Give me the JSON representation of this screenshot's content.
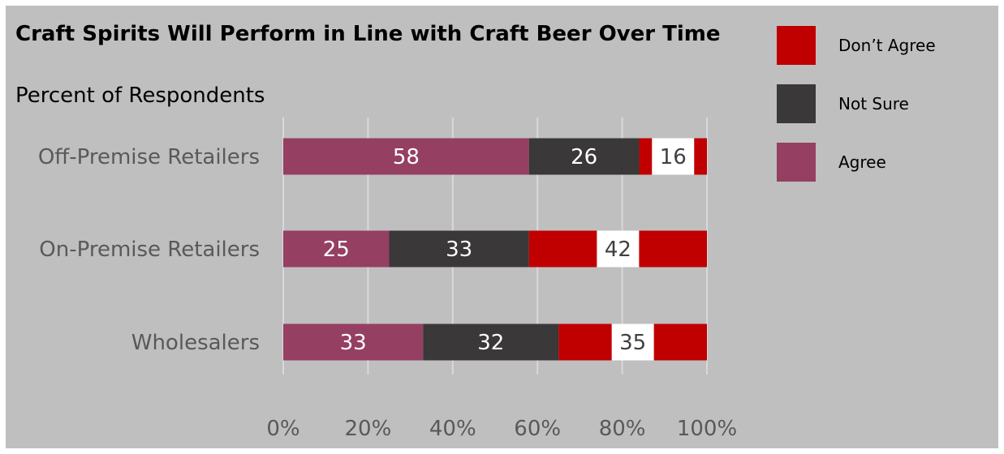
{
  "chart_data": {
    "type": "bar",
    "orientation": "horizontal",
    "stacked": true,
    "title": "Craft Spirits Will Perform in Line with Craft Beer Over Time",
    "subtitle": "Percent of Respondents",
    "categories": [
      "Off-Premise Retailers",
      "On-Premise Retailers",
      "Wholesalers"
    ],
    "series": [
      {
        "name": "Agree",
        "values": [
          58,
          25,
          33
        ],
        "color": "#953f62"
      },
      {
        "name": "Not Sure",
        "values": [
          26,
          33,
          32
        ],
        "color": "#3a3838"
      },
      {
        "name": "Don’t Agree",
        "values": [
          16,
          42,
          35
        ],
        "color": "#c00000"
      }
    ],
    "xlim": [
      0,
      100
    ],
    "xticks": [
      "0%",
      "20%",
      "40%",
      "60%",
      "80%",
      "100%"
    ],
    "grid": true,
    "legend_position": "right",
    "legend_order": [
      "Don’t Agree",
      "Not Sure",
      "Agree"
    ]
  }
}
